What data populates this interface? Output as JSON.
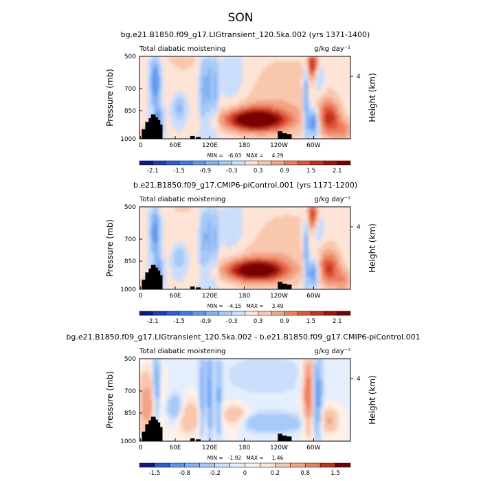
{
  "season_title": "SON",
  "chart_data": [
    {
      "type": "heatmap",
      "title": "bg.e21.B1850.f09_g17.LIGtransient_120.5ka.002 (yrs 1371-1400)",
      "left_label": "Total diabatic moistening",
      "units_label": "g/kg day⁻¹",
      "ylabel": "Pressure (mb)",
      "ylabel_right": "Height (km)",
      "x_tick_labels": [
        "0",
        "60E",
        "120E",
        "180",
        "120W",
        "60W"
      ],
      "y_tick_labels": [
        "500",
        "700",
        "850",
        "1000"
      ],
      "right_tick_labels": [
        "4"
      ],
      "stats_label": "MIN =   -6.03   MAX =     4.29",
      "colorbar_labels": [
        "-2.1",
        "-1.5",
        "-0.9",
        "-0.3",
        "0.3",
        "0.9",
        "1.5",
        "2.1"
      ],
      "colorbar_levels": [
        -2.4,
        -2.1,
        -1.8,
        -1.5,
        -1.2,
        -0.9,
        -0.6,
        -0.3,
        0,
        0.3,
        0.6,
        0.9,
        1.2,
        1.5,
        1.8,
        2.1,
        2.4
      ],
      "min": -6.03,
      "max": 4.29,
      "ylim": [
        1000,
        500
      ]
    },
    {
      "type": "heatmap",
      "title": "b.e21.B1850.f09_g17.CMIP6-piControl.001 (yrs 1171-1200)",
      "left_label": "Total diabatic moistening",
      "units_label": "g/kg day⁻¹",
      "ylabel": "Pressure (mb)",
      "ylabel_right": "Height (km)",
      "x_tick_labels": [
        "0",
        "60E",
        "120E",
        "180",
        "120W",
        "60W"
      ],
      "y_tick_labels": [
        "500",
        "700",
        "850",
        "1000"
      ],
      "right_tick_labels": [
        "4"
      ],
      "stats_label": "MIN =   -4.15   MAX =     3.49",
      "colorbar_labels": [
        "-2.1",
        "-1.5",
        "-0.9",
        "-0.3",
        "0.3",
        "0.9",
        "1.5",
        "2.1"
      ],
      "colorbar_levels": [
        -2.4,
        -2.1,
        -1.8,
        -1.5,
        -1.2,
        -0.9,
        -0.6,
        -0.3,
        0,
        0.3,
        0.6,
        0.9,
        1.2,
        1.5,
        1.8,
        2.1,
        2.4
      ],
      "min": -4.15,
      "max": 3.49,
      "ylim": [
        1000,
        500
      ]
    },
    {
      "type": "heatmap",
      "title": "bg.e21.B1850.f09_g17.LIGtransient_120.5ka.002 - b.e21.B1850.f09_g17.CMIP6-piControl.001",
      "left_label": "Total diabatic moistening",
      "units_label": "g/kg day⁻¹",
      "ylabel": "Pressure (mb)",
      "ylabel_right": "Height (km)",
      "x_tick_labels": [
        "0",
        "60E",
        "120E",
        "180",
        "120W",
        "60W"
      ],
      "y_tick_labels": [
        "500",
        "700",
        "850",
        "1000"
      ],
      "right_tick_labels": [
        "4"
      ],
      "stats_label": "MIN =   -1.92   MAX =     1.46",
      "colorbar_labels": [
        "-1.5",
        "-0.8",
        "-0.2",
        "0",
        "0.2",
        "0.8",
        "1.5"
      ],
      "colorbar_levels": [
        -2.0,
        -1.5,
        -1.2,
        -0.8,
        -0.5,
        -0.2,
        -0.1,
        0,
        0.1,
        0.2,
        0.5,
        0.8,
        1.2,
        1.5,
        2.0
      ],
      "min": -1.92,
      "max": 1.46,
      "ylim": [
        1000,
        500
      ]
    }
  ],
  "colors": {
    "negative_extreme": "#0a1a80",
    "zero_low": "#d9e8fb",
    "zero_high": "#fde3d3",
    "positive_extreme": "#780000",
    "topography": "#000000"
  }
}
